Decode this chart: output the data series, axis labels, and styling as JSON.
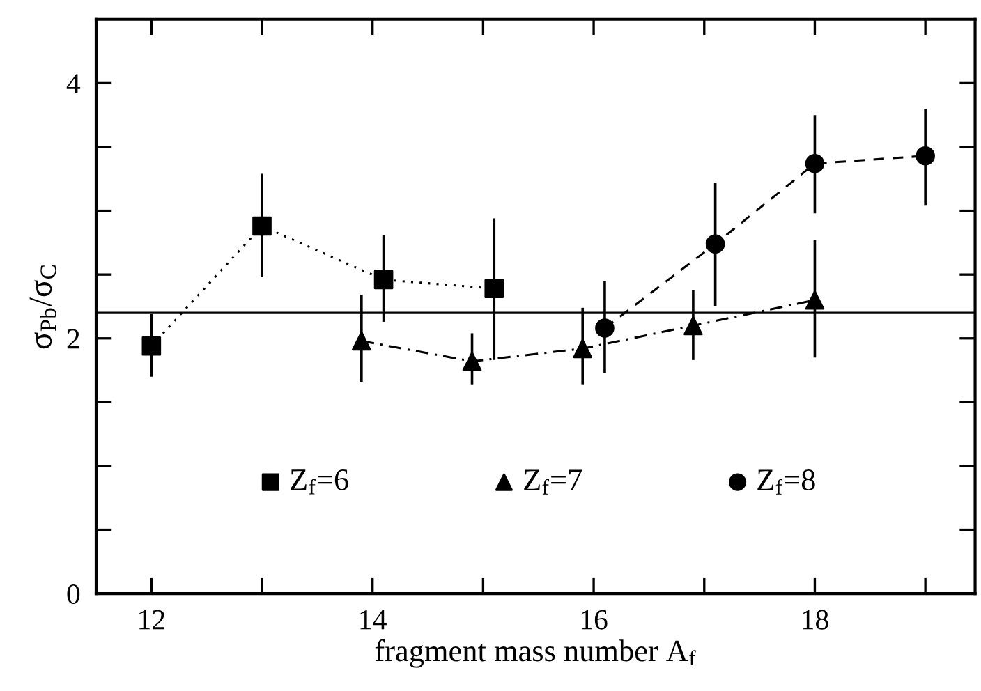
{
  "chart_data": {
    "type": "line",
    "xlabel": "fragment mass number A$_{f}$",
    "ylabel": "σ$_{Pb}$/σ$_{C}$",
    "xlim": [
      11.5,
      19.45
    ],
    "ylim": [
      0,
      4.5
    ],
    "xticks": [
      12,
      {
        "value": 13,
        "label": null
      },
      14,
      {
        "value": 15,
        "label": null
      },
      16,
      {
        "value": 17,
        "label": null
      },
      18,
      {
        "value": 19,
        "label": null
      }
    ],
    "yticks": [
      0,
      {
        "value": 0.5,
        "label": null
      },
      {
        "value": 1,
        "label": null
      },
      {
        "value": 1.5,
        "label": null
      },
      2,
      {
        "value": 2.5,
        "label": null
      },
      {
        "value": 3,
        "label": null
      },
      {
        "value": 3.5,
        "label": null
      },
      4
    ],
    "series": [
      {
        "name": "Z$_{f}$=6",
        "color": "#000000",
        "marker": "square",
        "line_style": "dotted",
        "x": [
          12,
          13,
          14.1,
          15.1
        ],
        "values": [
          1.94,
          2.88,
          2.46,
          2.39
        ],
        "errors": [
          [
            1.71,
            2.18
          ],
          [
            2.49,
            3.28
          ],
          [
            2.14,
            2.8
          ],
          [
            1.84,
            2.93
          ]
        ]
      },
      {
        "name": "Z$_{f}$=7",
        "color": "#000000",
        "marker": "triangle",
        "line_style": "dashdot",
        "x": [
          13.9,
          14.9,
          15.9,
          16.9,
          18
        ],
        "values": [
          1.98,
          1.82,
          1.92,
          2.1,
          2.3
        ],
        "errors": [
          [
            1.67,
            2.33
          ],
          [
            1.65,
            2.03
          ],
          [
            1.65,
            2.23
          ],
          [
            1.84,
            2.37
          ],
          [
            1.86,
            2.76
          ]
        ]
      },
      {
        "name": "Z$_{f}$=8",
        "color": "#000000",
        "marker": "circle",
        "line_style": "dashed",
        "x": [
          16.1,
          17.1,
          18,
          19
        ],
        "values": [
          2.08,
          2.74,
          3.37,
          3.43
        ],
        "errors": [
          [
            1.74,
            2.44
          ],
          [
            2.26,
            3.21
          ],
          [
            2.99,
            3.74
          ],
          [
            3.05,
            3.79
          ]
        ]
      }
    ],
    "ref_lines": [
      {
        "axis": "y",
        "value": 2.2,
        "color": "#000000",
        "line_style": "solid"
      }
    ],
    "legend": "bottom",
    "grid": false
  }
}
